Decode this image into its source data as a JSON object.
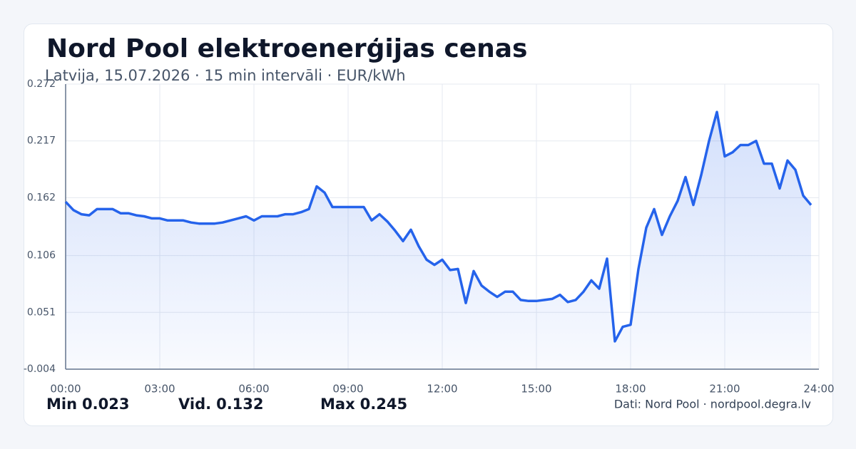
{
  "chart_data": {
    "type": "line",
    "title": "Nord Pool elektroenerģijas cenas",
    "subtitle": "Latvija, 15.07.2026 · 15 min intervāli · EUR/kWh",
    "x": [
      0,
      0.25,
      0.5,
      0.75,
      1,
      1.25,
      1.5,
      1.75,
      2,
      2.25,
      2.5,
      2.75,
      3,
      3.25,
      3.5,
      3.75,
      4,
      4.25,
      4.5,
      4.75,
      5,
      5.25,
      5.5,
      5.75,
      6,
      6.25,
      6.5,
      6.75,
      7,
      7.25,
      7.5,
      7.75,
      8,
      8.25,
      8.5,
      8.75,
      9,
      9.25,
      9.5,
      9.75,
      10,
      10.25,
      10.5,
      10.75,
      11,
      11.25,
      11.5,
      11.75,
      12,
      12.25,
      12.5,
      12.75,
      13,
      13.25,
      13.5,
      13.75,
      14,
      14.25,
      14.5,
      14.75,
      15,
      15.25,
      15.5,
      15.75,
      16,
      16.25,
      16.5,
      16.75,
      17,
      17.25,
      17.5,
      17.75,
      18,
      18.25,
      18.5,
      18.75,
      19,
      19.25,
      19.5,
      19.75,
      20,
      20.25,
      20.5,
      20.75,
      21,
      21.25,
      21.5,
      21.75,
      22,
      22.25,
      22.5,
      22.75,
      23,
      23.25,
      23.5,
      23.75
    ],
    "series": [
      {
        "color": "#2563eb",
        "values": [
          0.158,
          0.15,
          0.146,
          0.145,
          0.151,
          0.151,
          0.151,
          0.147,
          0.147,
          0.145,
          0.144,
          0.142,
          0.142,
          0.14,
          0.14,
          0.14,
          0.138,
          0.137,
          0.137,
          0.137,
          0.138,
          0.14,
          0.142,
          0.144,
          0.14,
          0.144,
          0.144,
          0.144,
          0.146,
          0.146,
          0.148,
          0.151,
          0.173,
          0.167,
          0.153,
          0.153,
          0.153,
          0.153,
          0.153,
          0.14,
          0.146,
          0.139,
          0.13,
          0.12,
          0.131,
          0.115,
          0.102,
          0.097,
          0.102,
          0.092,
          0.093,
          0.06,
          0.091,
          0.077,
          0.071,
          0.066,
          0.071,
          0.071,
          0.063,
          0.062,
          0.062,
          0.063,
          0.064,
          0.068,
          0.061,
          0.063,
          0.071,
          0.082,
          0.074,
          0.103,
          0.023,
          0.037,
          0.039,
          0.093,
          0.133,
          0.151,
          0.126,
          0.144,
          0.159,
          0.182,
          0.155,
          0.184,
          0.217,
          0.245,
          0.202,
          0.206,
          0.213,
          0.213,
          0.217,
          0.195,
          0.195,
          0.171,
          0.198,
          0.189,
          0.164,
          0.155
        ]
      }
    ],
    "xlim": [
      0,
      24
    ],
    "xticks": [
      {
        "value": 0,
        "label": "00:00"
      },
      {
        "value": 3,
        "label": "03:00"
      },
      {
        "value": 6,
        "label": "06:00"
      },
      {
        "value": 9,
        "label": "09:00"
      },
      {
        "value": 12,
        "label": "12:00"
      },
      {
        "value": 15,
        "label": "15:00"
      },
      {
        "value": 18,
        "label": "18:00"
      },
      {
        "value": 21,
        "label": "21:00"
      },
      {
        "value": 24,
        "label": "24:00"
      }
    ],
    "ylim": [
      -0.004,
      0.272
    ],
    "yticks": [
      -0.004,
      0.051,
      0.106,
      0.162,
      0.217,
      0.272
    ],
    "grid": true,
    "stats": [
      {
        "label": "Min",
        "value": 0.023
      },
      {
        "label": "Vid.",
        "value": 0.132
      },
      {
        "label": "Max",
        "value": 0.245
      }
    ],
    "source": "Dati: Nord Pool · nordpool.degra.lv"
  }
}
